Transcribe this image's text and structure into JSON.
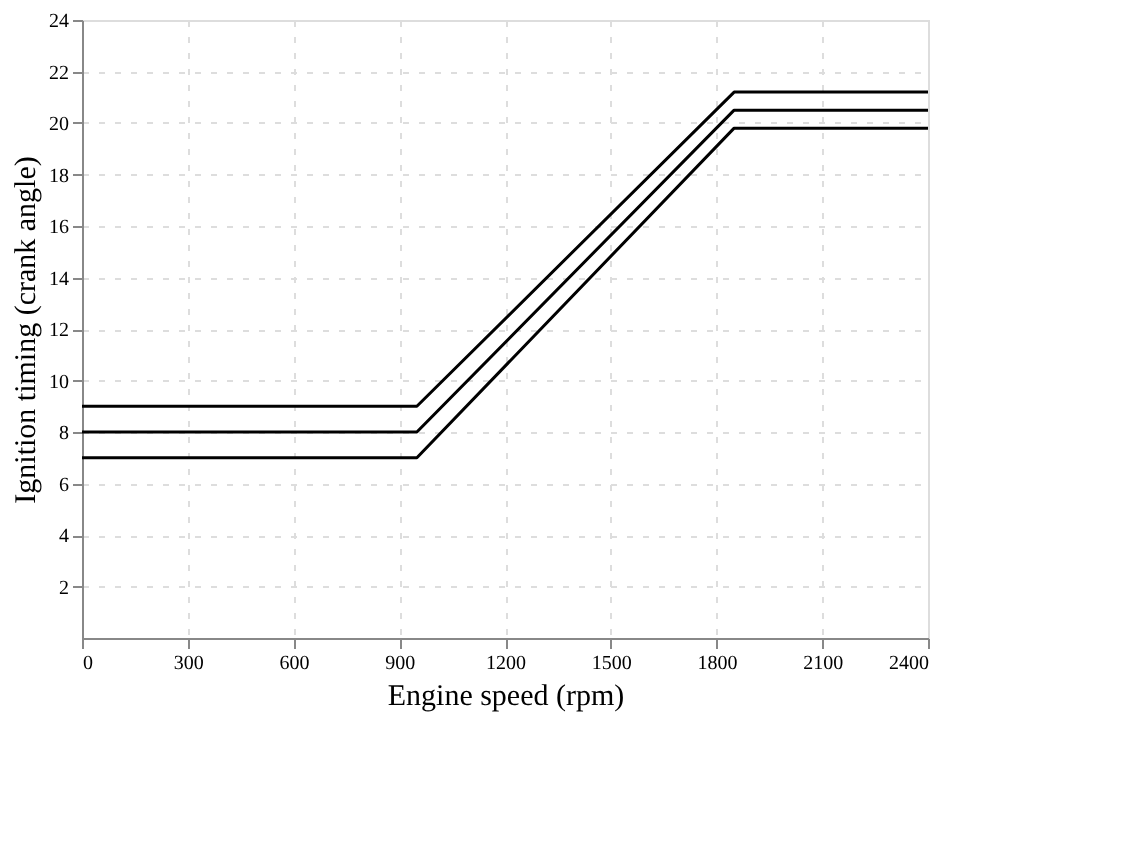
{
  "chart_data": {
    "type": "line",
    "xlabel": "Engine speed (rpm)",
    "ylabel": "Ignition timing (crank angle)",
    "x": [
      0,
      950,
      1850,
      2400
    ],
    "series": [
      {
        "color": "#000000",
        "values": [
          9,
          9,
          21.2,
          21.2
        ]
      },
      {
        "color": "#000000",
        "values": [
          8,
          8,
          20.5,
          20.5
        ]
      },
      {
        "color": "#000000",
        "values": [
          7,
          7,
          19.8,
          19.8
        ]
      }
    ],
    "xlim": [
      0,
      2400
    ],
    "xticks": [
      0,
      300,
      600,
      900,
      1200,
      1500,
      1800,
      2100,
      2400
    ],
    "ylim": [
      0,
      24
    ],
    "yticks": [
      2,
      4,
      6,
      8,
      10,
      12,
      14,
      16,
      18,
      20,
      22,
      24
    ],
    "grid": true,
    "legend": false,
    "marker": "none",
    "line_style": "solid"
  }
}
